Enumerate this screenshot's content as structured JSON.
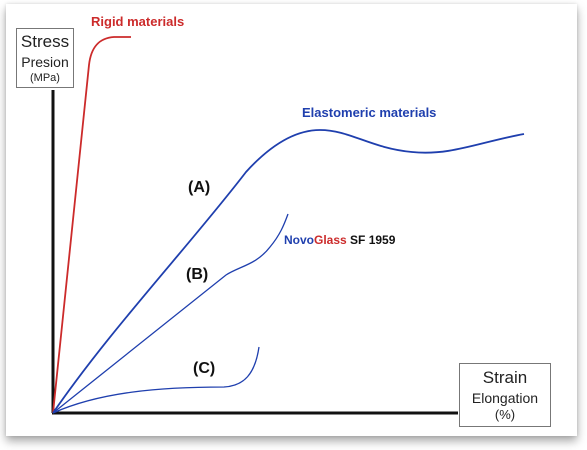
{
  "chart_data": {
    "type": "line",
    "title": "",
    "ylabel": "Stress",
    "ylabel_sub": "Presion",
    "ylabel_unit": "(MPa)",
    "xlabel": "Strain",
    "xlabel_sub": "Elongation",
    "xlabel_unit": "(%)",
    "grid": false,
    "legend": "none",
    "axis_color": "#111111",
    "series": [
      {
        "label": "Rigid materials",
        "color": "#cc2b2b"
      },
      {
        "label": "Elastomeric materials",
        "color": "#1f3fae"
      },
      {
        "label": "(A)",
        "color": "#1f3fae"
      },
      {
        "label": "(B)",
        "color": "#1f3fae"
      },
      {
        "label": "(C)",
        "color": "#1f3fae"
      }
    ],
    "annotation": {
      "novo": "Novo",
      "glass": "Glass",
      "rest": " SF 1959",
      "novo_color": "#1f3fae",
      "glass_color": "#cc2b2b",
      "rest_color": "#111111"
    }
  }
}
